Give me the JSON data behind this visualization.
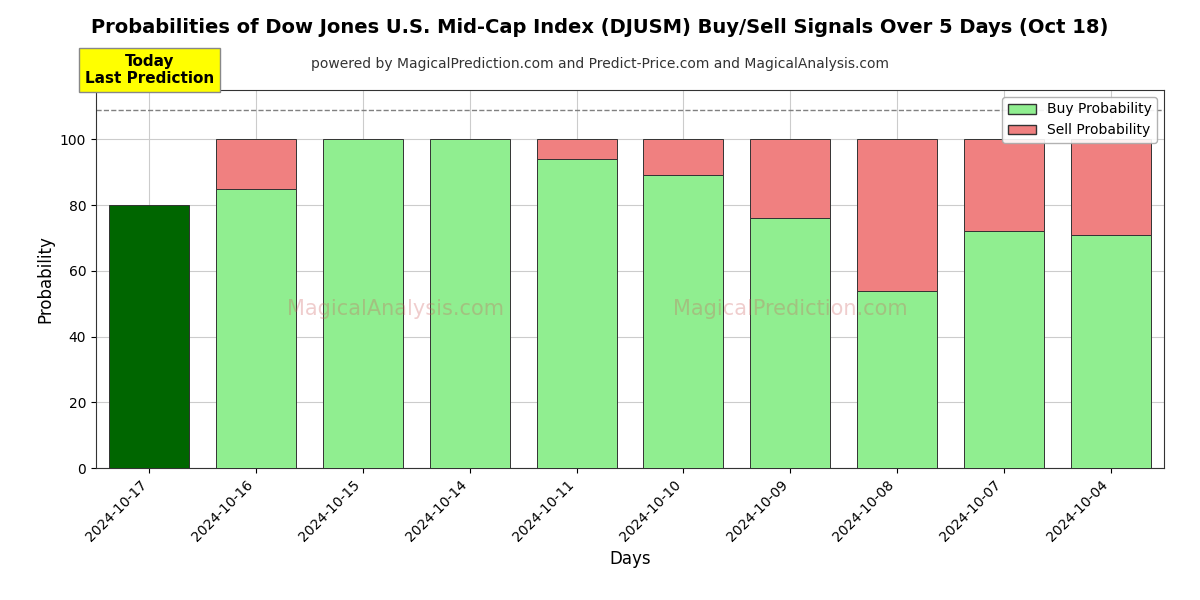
{
  "title": "Probabilities of Dow Jones U.S. Mid-Cap Index (DJUSM) Buy/Sell Signals Over 5 Days (Oct 18)",
  "subtitle": "powered by MagicalPrediction.com and Predict-Price.com and MagicalAnalysis.com",
  "xlabel": "Days",
  "ylabel": "Probability",
  "dates": [
    "2024-10-17",
    "2024-10-16",
    "2024-10-15",
    "2024-10-14",
    "2024-10-11",
    "2024-10-10",
    "2024-10-09",
    "2024-10-08",
    "2024-10-07",
    "2024-10-04"
  ],
  "buy_values": [
    80,
    85,
    100,
    100,
    94,
    89,
    76,
    54,
    72,
    71
  ],
  "sell_values": [
    0,
    15,
    0,
    0,
    6,
    11,
    24,
    46,
    28,
    29
  ],
  "today_bar_color": "#006600",
  "buy_bar_color": "#90EE90",
  "sell_bar_color": "#F08080",
  "today_annotation_bg": "#FFFF00",
  "today_annotation_text": "Today\nLast Prediction",
  "dashed_line_y": 109,
  "ylim": [
    0,
    115
  ],
  "yticks": [
    0,
    20,
    40,
    60,
    80,
    100
  ],
  "legend_buy_label": "Buy Probability",
  "legend_sell_label": "Sell Probability",
  "grid_color": "#cccccc",
  "bar_edge_color": "#333333",
  "background_color": "#ffffff",
  "plot_bg_color": "#ffffff",
  "title_fontsize": 14,
  "subtitle_fontsize": 10,
  "bar_width": 0.75
}
